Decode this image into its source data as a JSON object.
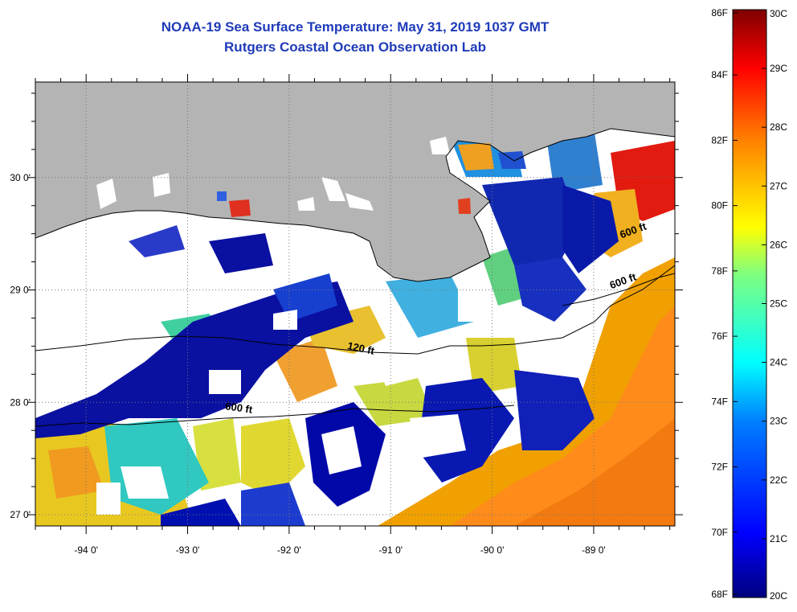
{
  "header": {
    "title": "NOAA-19 Sea Surface Temperature:  May 31, 2019 1037 GMT",
    "subtitle": "Rutgers Coastal Ocean Observation Lab"
  },
  "map": {
    "lon_range": [
      -94.5,
      -88.2
    ],
    "lat_range": [
      26.9,
      30.85
    ],
    "lon_ticks": [
      {
        "value": -94,
        "label": "-94 0'"
      },
      {
        "value": -93,
        "label": "-93 0'"
      },
      {
        "value": -92,
        "label": "-92 0'"
      },
      {
        "value": -91,
        "label": "-91 0'"
      },
      {
        "value": -90,
        "label": "-90 0'"
      },
      {
        "value": -89,
        "label": "-89 0'"
      }
    ],
    "lat_ticks": [
      {
        "value": 30,
        "label": "30 0'"
      },
      {
        "value": 29,
        "label": "29 0'"
      },
      {
        "value": 28,
        "label": "28 0'"
      },
      {
        "value": 27,
        "label": "27 0'"
      }
    ],
    "contour_labels": [
      {
        "text": "120 ft",
        "lon": -91.3,
        "lat": 28.45
      },
      {
        "text": "600 ft",
        "lon": -92.5,
        "lat": 27.92
      },
      {
        "text": "600 ft",
        "lon": -88.7,
        "lat": 29.05
      },
      {
        "text": "600 ft",
        "lon": -88.6,
        "lat": 29.5
      }
    ],
    "colors": {
      "land": "#b4b4b4",
      "no_data": "#ffffff"
    }
  },
  "colorbar": {
    "fahrenheit_labels": [
      "86F",
      "84F",
      "82F",
      "80F",
      "78F",
      "76F",
      "74F",
      "72F",
      "70F",
      "68F"
    ],
    "celsius_labels": [
      "30C",
      "29C",
      "28C",
      "27C",
      "26C",
      "25C",
      "24C",
      "23C",
      "22C",
      "21C",
      "20C"
    ],
    "range_c": [
      20,
      30
    ],
    "colors": [
      "#00007f",
      "#0000ff",
      "#007fff",
      "#00ffff",
      "#7fff7f",
      "#ffff00",
      "#ff7f00",
      "#ff0000",
      "#7f0000"
    ]
  }
}
